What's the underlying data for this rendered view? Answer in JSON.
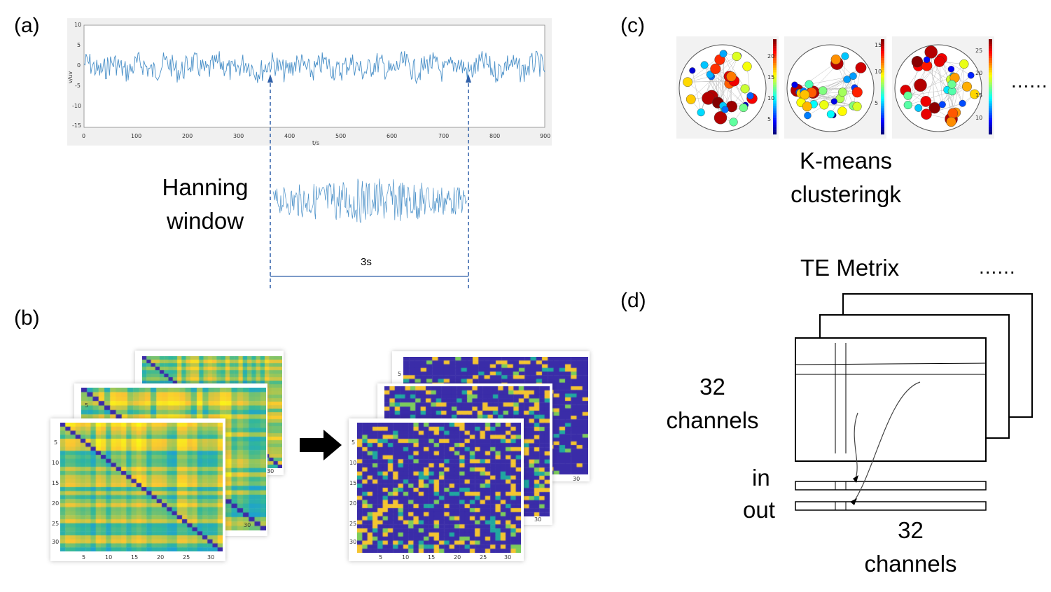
{
  "panels": {
    "a": "(a)",
    "b": "(b)",
    "c": "(c)",
    "d": "(d)"
  },
  "panel_a": {
    "y_ticks": [
      "10",
      "5",
      "0",
      "-5",
      "-10",
      "-15"
    ],
    "x_ticks": [
      "0",
      "100",
      "200",
      "300",
      "400",
      "500",
      "600",
      "700",
      "800",
      "900"
    ],
    "y_label": "v/uv",
    "x_label": "t/s",
    "window_label_line1": "Hanning",
    "window_label_line2": "window",
    "duration_label": "3s",
    "signal_color": "#4a90c8",
    "dash_color": "#2f5fa8"
  },
  "panel_b": {
    "left_ticks_y": [
      "5",
      "10",
      "15",
      "20",
      "25",
      "30"
    ],
    "left_ticks_x": [
      "5",
      "10",
      "15",
      "20",
      "25",
      "30"
    ],
    "back_tick_30": "30",
    "mid_tick_5": "5",
    "right_ticks_y": [
      "5",
      "10",
      "15",
      "20",
      "25",
      "30"
    ],
    "right_ticks_x": [
      "5",
      "10",
      "15",
      "20",
      "25",
      "30"
    ],
    "right_back_tick_5": "5",
    "colors": {
      "dark_blue": "#3a2ca8",
      "yellow": "#f4c430",
      "teal": "#20a8a0",
      "green": "#7ccc5c"
    }
  },
  "panel_c": {
    "label_line1": "K-means",
    "label_line2": "clusteringk",
    "ellipsis": "......",
    "colorbar_ticks": [
      [
        "20",
        "15",
        "10",
        "5"
      ],
      [
        "15",
        "10",
        "5"
      ],
      [
        "25",
        "20",
        "15",
        "10"
      ]
    ]
  },
  "panel_d": {
    "title": "TE Metrix",
    "ellipsis": "......",
    "rows_label_line1": "32",
    "rows_label_line2": "channels",
    "in_label": "in",
    "out_label": "out",
    "cols_label_line1": "32",
    "cols_label_line2": "channels"
  }
}
